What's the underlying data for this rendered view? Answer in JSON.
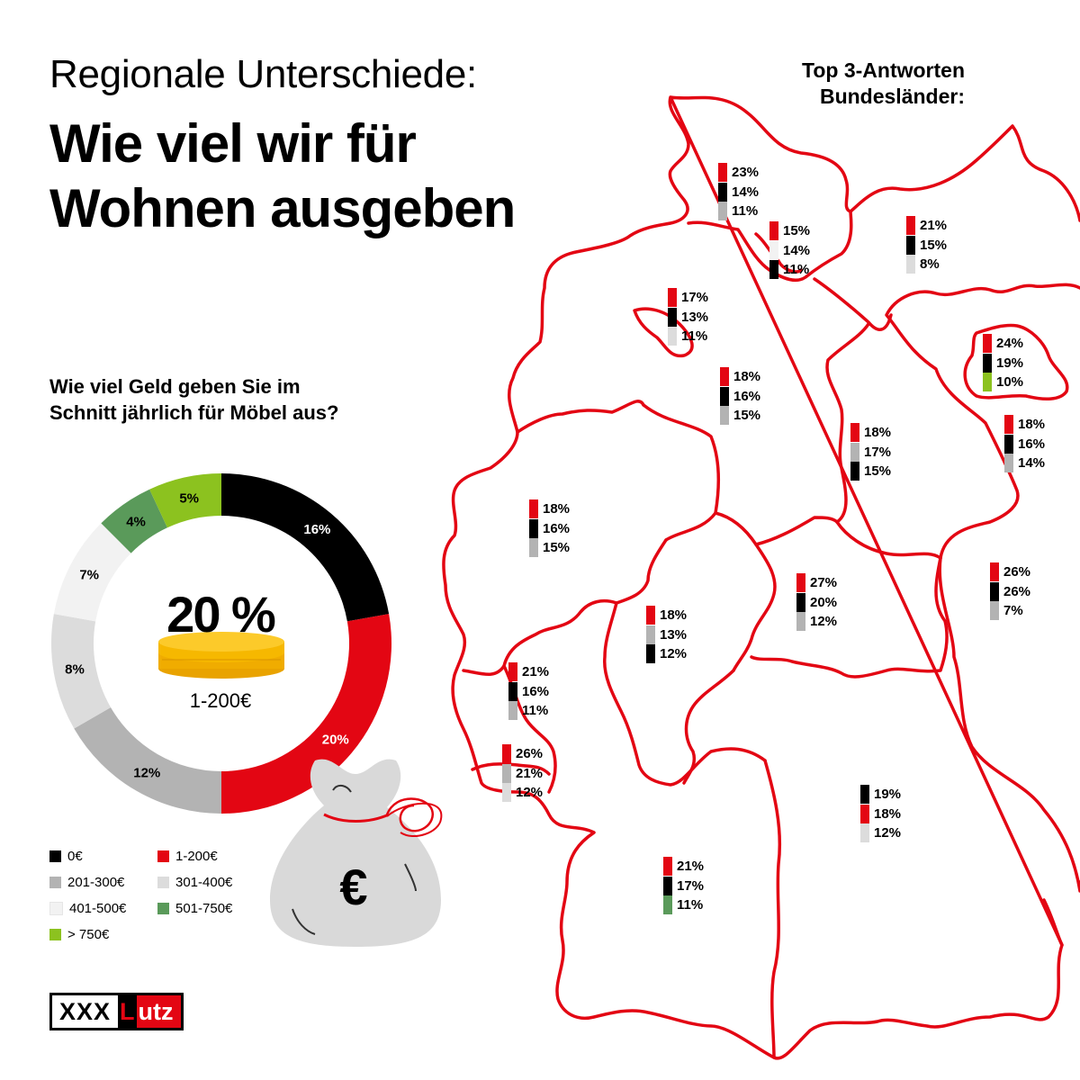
{
  "header": {
    "subtitle": "Regionale Unterschiede:",
    "title_line1": "Wie viel wir für",
    "title_line2": "Wohnen ausgeben"
  },
  "map_header": {
    "line1": "Top 3-Antworten",
    "line2": "Bundesländer:"
  },
  "question": {
    "line1": "Wie viel Geld geben Sie im",
    "line2": "Schnitt jährlich für Möbel aus?"
  },
  "highlight": {
    "value": "20 %",
    "label": "1-200€"
  },
  "colors": {
    "0€": "#000000",
    "1-200€": "#e30613",
    "201-300€": "#b3b3b3",
    "301-400€": "#dcdcdc",
    "401-500€": "#f2f2f2",
    "501-750€": "#5a9a5a",
    "> 750€": "#8cc21f",
    "map_outline": "#e30613"
  },
  "chart_data": [
    {
      "type": "pie",
      "categories": [
        "0€",
        "1-200€",
        "201-300€",
        "301-400€",
        "401-500€",
        "501-750€",
        "> 750€"
      ],
      "values": [
        16,
        20,
        12,
        8,
        7,
        4,
        5
      ],
      "labels": [
        "16%",
        "20%",
        "12%",
        "8%",
        "7%",
        "4%",
        "5%"
      ],
      "legend": [
        "0€",
        "1-200€",
        "201-300€",
        "301-400€",
        "401-500€",
        "501-750€",
        "> 750€"
      ]
    },
    {
      "type": "bar",
      "regions": [
        {
          "id": "r1",
          "values": [
            {
              "label": "23%",
              "value": 23,
              "category": "1-200€"
            },
            {
              "label": "14%",
              "value": 14,
              "category": "0€"
            },
            {
              "label": "11%",
              "value": 11,
              "category": "201-300€"
            }
          ]
        },
        {
          "id": "r2",
          "values": [
            {
              "label": "15%",
              "value": 15,
              "category": "1-200€"
            },
            {
              "label": "14%",
              "value": 14,
              "category": "401-500€"
            },
            {
              "label": "11%",
              "value": 11,
              "category": "0€"
            }
          ]
        },
        {
          "id": "r3",
          "values": [
            {
              "label": "21%",
              "value": 21,
              "category": "1-200€"
            },
            {
              "label": "15%",
              "value": 15,
              "category": "0€"
            },
            {
              "label": "8%",
              "value": 8,
              "category": "301-400€"
            }
          ]
        },
        {
          "id": "r4",
          "values": [
            {
              "label": "17%",
              "value": 17,
              "category": "1-200€"
            },
            {
              "label": "13%",
              "value": 13,
              "category": "0€"
            },
            {
              "label": "11%",
              "value": 11,
              "category": "301-400€"
            }
          ]
        },
        {
          "id": "r5",
          "values": [
            {
              "label": "18%",
              "value": 18,
              "category": "1-200€"
            },
            {
              "label": "16%",
              "value": 16,
              "category": "0€"
            },
            {
              "label": "15%",
              "value": 15,
              "category": "201-300€"
            }
          ]
        },
        {
          "id": "r6",
          "values": [
            {
              "label": "24%",
              "value": 24,
              "category": "1-200€"
            },
            {
              "label": "19%",
              "value": 19,
              "category": "0€"
            },
            {
              "label": "10%",
              "value": 10,
              "category": "> 750€"
            }
          ]
        },
        {
          "id": "r7",
          "values": [
            {
              "label": "18%",
              "value": 18,
              "category": "1-200€"
            },
            {
              "label": "17%",
              "value": 17,
              "category": "201-300€"
            },
            {
              "label": "15%",
              "value": 15,
              "category": "0€"
            }
          ]
        },
        {
          "id": "r8",
          "values": [
            {
              "label": "18%",
              "value": 18,
              "category": "1-200€"
            },
            {
              "label": "16%",
              "value": 16,
              "category": "0€"
            },
            {
              "label": "14%",
              "value": 14,
              "category": "201-300€"
            }
          ]
        },
        {
          "id": "r9",
          "values": [
            {
              "label": "18%",
              "value": 18,
              "category": "1-200€"
            },
            {
              "label": "16%",
              "value": 16,
              "category": "0€"
            },
            {
              "label": "15%",
              "value": 15,
              "category": "201-300€"
            }
          ]
        },
        {
          "id": "r10",
          "values": [
            {
              "label": "27%",
              "value": 27,
              "category": "1-200€"
            },
            {
              "label": "20%",
              "value": 20,
              "category": "0€"
            },
            {
              "label": "12%",
              "value": 12,
              "category": "201-300€"
            }
          ]
        },
        {
          "id": "r11",
          "values": [
            {
              "label": "26%",
              "value": 26,
              "category": "1-200€"
            },
            {
              "label": "26%",
              "value": 26,
              "category": "0€"
            },
            {
              "label": "7%",
              "value": 7,
              "category": "201-300€"
            }
          ]
        },
        {
          "id": "r12",
          "values": [
            {
              "label": "18%",
              "value": 18,
              "category": "1-200€"
            },
            {
              "label": "13%",
              "value": 13,
              "category": "201-300€"
            },
            {
              "label": "12%",
              "value": 12,
              "category": "0€"
            }
          ]
        },
        {
          "id": "r13",
          "values": [
            {
              "label": "21%",
              "value": 21,
              "category": "1-200€"
            },
            {
              "label": "16%",
              "value": 16,
              "category": "0€"
            },
            {
              "label": "11%",
              "value": 11,
              "category": "201-300€"
            }
          ]
        },
        {
          "id": "r14",
          "values": [
            {
              "label": "26%",
              "value": 26,
              "category": "1-200€"
            },
            {
              "label": "21%",
              "value": 21,
              "category": "201-300€"
            },
            {
              "label": "12%",
              "value": 12,
              "category": "301-400€"
            }
          ]
        },
        {
          "id": "r15",
          "values": [
            {
              "label": "19%",
              "value": 19,
              "category": "0€"
            },
            {
              "label": "18%",
              "value": 18,
              "category": "1-200€"
            },
            {
              "label": "12%",
              "value": 12,
              "category": "301-400€"
            }
          ]
        },
        {
          "id": "r16",
          "values": [
            {
              "label": "21%",
              "value": 21,
              "category": "1-200€"
            },
            {
              "label": "17%",
              "value": 17,
              "category": "0€"
            },
            {
              "label": "11%",
              "value": 11,
              "category": "501-750€"
            }
          ]
        }
      ]
    }
  ],
  "logo": {
    "left": "XXX",
    "right_first": "L",
    "right_rest": "utz"
  }
}
